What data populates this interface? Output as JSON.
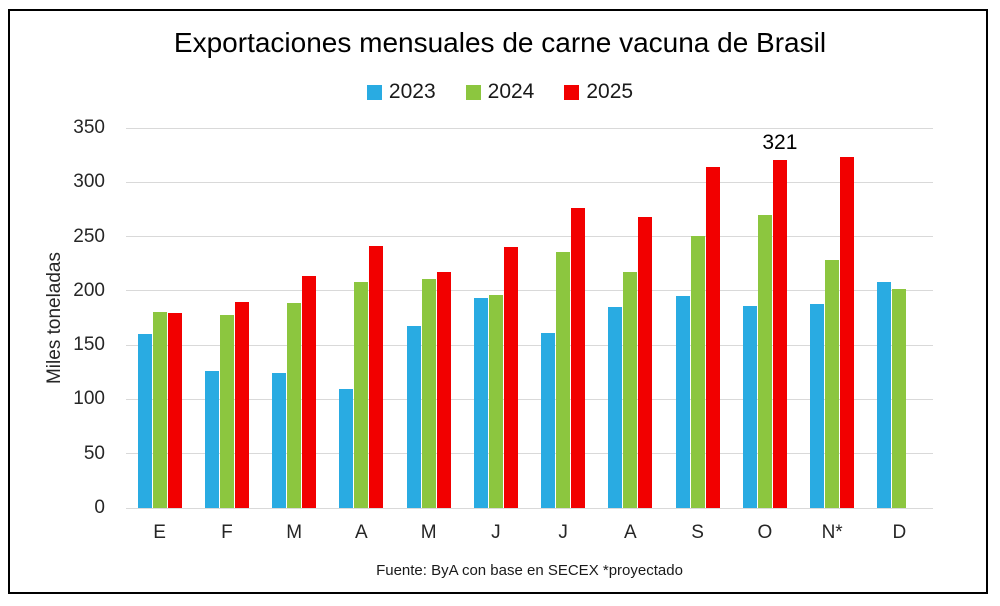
{
  "chart_data": {
    "type": "bar",
    "title": "Exportaciones mensuales de carne vacuna de Brasil",
    "ylabel": "Miles toneladas",
    "xlabel": "",
    "categories": [
      "E",
      "F",
      "M",
      "A",
      "M",
      "J",
      "J",
      "A",
      "S",
      "O",
      "N*",
      "D"
    ],
    "series": [
      {
        "name": "2023",
        "color": "#29ABE2",
        "values": [
          160,
          126,
          124,
          110,
          168,
          193,
          161,
          185,
          195,
          186,
          188,
          208
        ]
      },
      {
        "name": "2024",
        "color": "#8CC63F",
        "values": [
          181,
          178,
          189,
          208,
          211,
          196,
          236,
          217,
          251,
          270,
          228,
          202
        ]
      },
      {
        "name": "2025",
        "color": "#F20000",
        "values": [
          180,
          190,
          214,
          241,
          217,
          240,
          276,
          268,
          314,
          321,
          323,
          null
        ]
      }
    ],
    "ylim": [
      0,
      350
    ],
    "yticks": [
      0,
      50,
      100,
      150,
      200,
      250,
      300,
      350
    ],
    "grid": true,
    "legend_position": "top-center",
    "annotation": {
      "text": "321",
      "category_index": 9,
      "series_index": 2
    },
    "source_note": "Fuente: ByA con base en SECEX *proyectado",
    "gridline_color": "#D9D9D9",
    "frame_border_color": "#000000"
  }
}
